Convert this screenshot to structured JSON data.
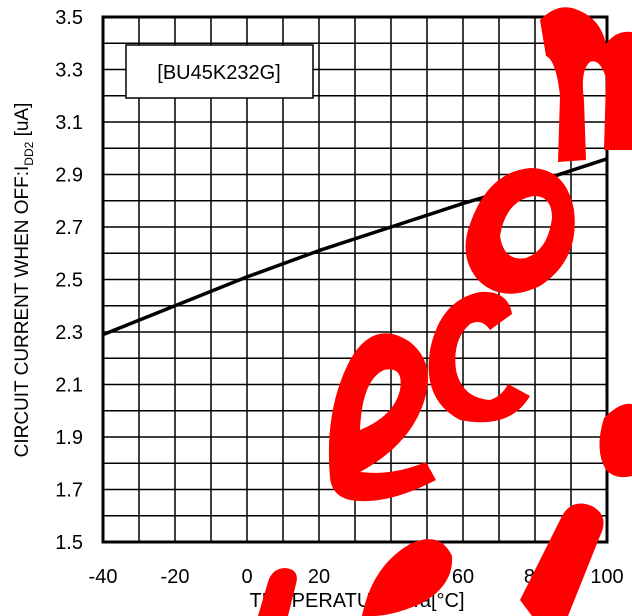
{
  "chart_data": {
    "type": "line",
    "title": "",
    "annotation": "[BU45K232G]",
    "xlabel": "TEMPERATURE: Ta[°C]",
    "ylabel": {
      "main": "CIRCUIT CURRENT WHEN OFF:I",
      "sub": "DD2",
      "unit": " [uA]"
    },
    "xlim": [
      -40,
      100
    ],
    "ylim": [
      1.5,
      3.5
    ],
    "xticks": [
      "-40",
      "-20",
      "0",
      "20",
      "40",
      "60",
      "80",
      "100"
    ],
    "yticks": [
      "1.5",
      "1.7",
      "1.9",
      "2.1",
      "2.3",
      "2.5",
      "2.7",
      "2.9",
      "3.1",
      "3.3",
      "3.5"
    ],
    "grid": true,
    "grid_minor_x": 10,
    "grid_minor_y": 0.1,
    "x": [
      -40,
      -20,
      0,
      20,
      40,
      60,
      80,
      100
    ],
    "series": [
      {
        "values": [
          2.29,
          2.4,
          2.51,
          2.61,
          2.7,
          2.79,
          2.87,
          2.96
        ]
      }
    ]
  },
  "watermark": {
    "text": "Not Recommended",
    "color": "#ff0000"
  }
}
